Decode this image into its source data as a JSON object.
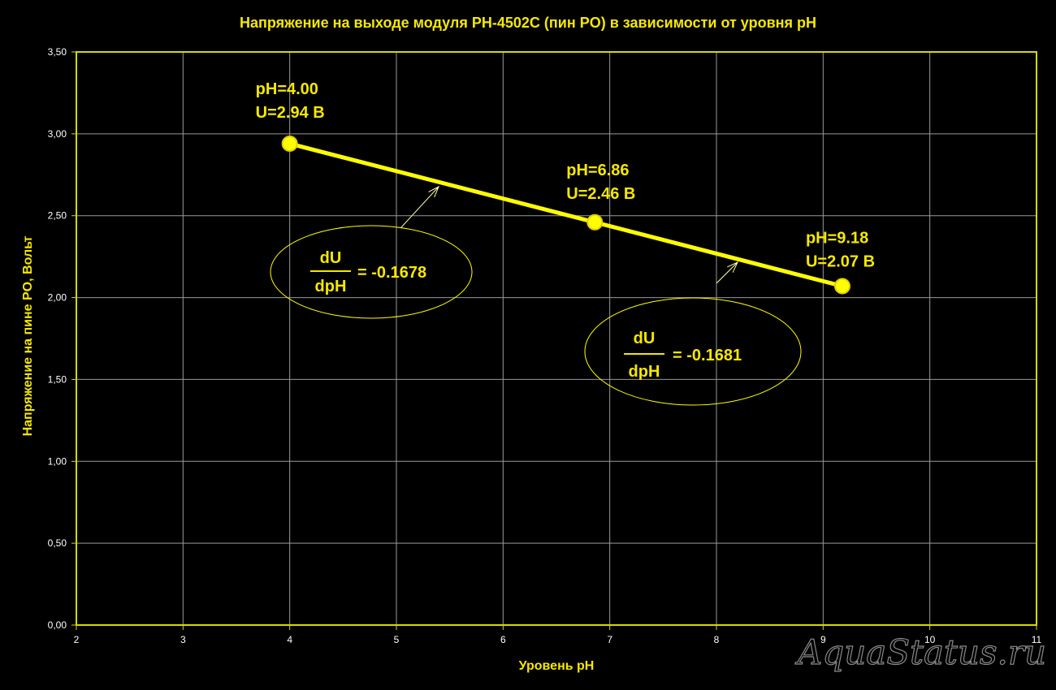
{
  "chart_data": {
    "type": "line",
    "title": "Напряжение на выходе модуля PH-4502C (пин PO) в зависимости от уровня  pH",
    "xlabel": "Уровень pH",
    "ylabel": "Напряжение на пине PO, Вольт",
    "xlim": [
      2,
      11
    ],
    "ylim": [
      0,
      3.5
    ],
    "x_ticks": [
      "2",
      "3",
      "4",
      "5",
      "6",
      "7",
      "8",
      "9",
      "10",
      "11"
    ],
    "y_ticks": [
      "0,00",
      "0,50",
      "1,00",
      "1,50",
      "2,00",
      "2,50",
      "3,00",
      "3,50"
    ],
    "grid": true,
    "series": [
      {
        "x": [
          4.0,
          6.86,
          9.18
        ],
        "y": [
          2.94,
          2.46,
          2.07
        ]
      }
    ],
    "point_labels": [
      {
        "line1": "pH=4.00",
        "line2": "U=2.94 В"
      },
      {
        "line1": "pH=6.86",
        "line2": "U=2.46 В"
      },
      {
        "line1": "pH=9.18",
        "line2": "U=2.07 В"
      }
    ],
    "annotations": [
      {
        "numerator": "dU",
        "denominator": "dpH",
        "value": "= -0.1678"
      },
      {
        "numerator": "dU",
        "denominator": "dpH",
        "value": "= -0.1681"
      }
    ],
    "watermark": "AquaStatus.ru",
    "colors": {
      "text": "#f5e800",
      "line": "#ffff00",
      "grid": "#9a9a9a",
      "axis": "#d8d800",
      "tick": "#ffffff",
      "background": "#000000"
    }
  }
}
